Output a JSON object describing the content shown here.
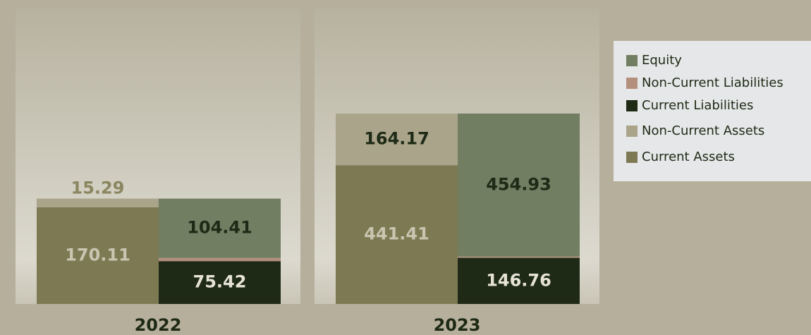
{
  "chart_data": {
    "type": "stacked-bar",
    "categories": [
      "2022",
      "2023"
    ],
    "series": [
      {
        "name": "Equity",
        "color": "#727e62",
        "label_color": "#1e2a16",
        "stack": 1,
        "values": [
          104.41,
          454.93
        ]
      },
      {
        "name": "Non-Current Liabilities",
        "color": "#b58f7d",
        "label_color": "#4a2a1e",
        "stack": 1,
        "values": [
          5.57,
          3.88
        ]
      },
      {
        "name": "Current Liabilities",
        "color": "#1e2a16",
        "label_color": "#e6e3d6",
        "stack": 1,
        "values": [
          75.42,
          146.76
        ]
      },
      {
        "name": "Non-Current Assets",
        "color": "#a9a48a",
        "label_color": "#8a8660",
        "stack": 0,
        "values": [
          15.29,
          164.17
        ]
      },
      {
        "name": "Current Assets",
        "color": "#7d7a53",
        "label_color": "#c9c5b1",
        "stack": 0,
        "values": [
          170.11,
          441.41
        ]
      }
    ],
    "legend": "top-right"
  }
}
